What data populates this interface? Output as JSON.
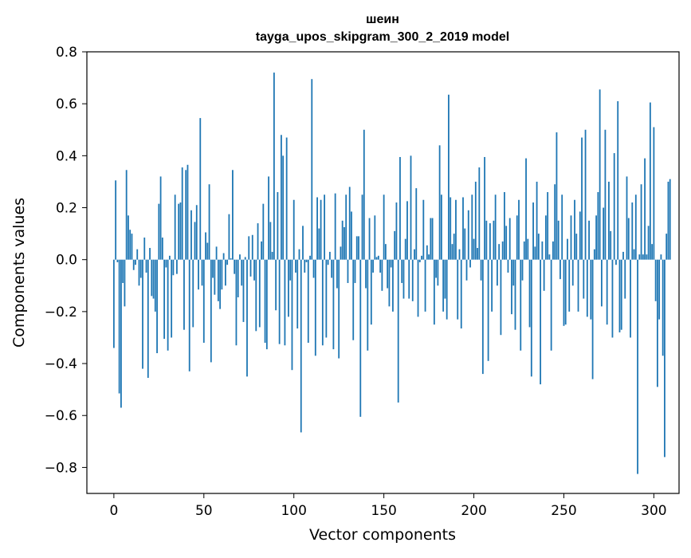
{
  "title_line1": "шеин",
  "title_line2": "tayga_upos_skipgram_300_2_2019 model",
  "chart_data": {
    "type": "bar",
    "xlabel": "Vector components",
    "ylabel": "Components values",
    "xlim": [
      -15,
      314
    ],
    "ylim": [
      -0.9,
      0.8
    ],
    "x_ticks": [
      0,
      50,
      100,
      150,
      200,
      250,
      300
    ],
    "x_tick_labels": [
      "0",
      "50",
      "100",
      "150",
      "200",
      "250",
      "300"
    ],
    "y_ticks": [
      -0.8,
      -0.6,
      -0.4,
      -0.2,
      0.0,
      0.2,
      0.4,
      0.6,
      0.8
    ],
    "y_tick_labels": [
      "−0.8",
      "−0.6",
      "−0.4",
      "−0.2",
      "0.0",
      "0.2",
      "0.4",
      "0.6",
      "0.8"
    ],
    "grid": false,
    "bar_color": "#1f77b4",
    "values": [
      -0.34,
      0.305,
      -0.01,
      -0.515,
      -0.57,
      -0.09,
      -0.18,
      0.345,
      0.17,
      0.115,
      0.1,
      -0.04,
      -0.02,
      0.04,
      -0.1,
      -0.07,
      -0.42,
      0.085,
      -0.05,
      -0.455,
      0.045,
      -0.14,
      -0.15,
      -0.2,
      -0.36,
      0.215,
      0.32,
      0.085,
      -0.305,
      -0.03,
      -0.35,
      0.015,
      -0.3,
      -0.06,
      0.25,
      -0.055,
      0.215,
      0.22,
      0.355,
      -0.27,
      0.345,
      0.365,
      -0.43,
      0.19,
      -0.26,
      0.145,
      0.21,
      -0.115,
      0.545,
      -0.1,
      -0.32,
      0.105,
      0.065,
      0.29,
      -0.395,
      -0.07,
      -0.135,
      0.05,
      -0.16,
      -0.19,
      -0.115,
      0.025,
      -0.1,
      -0.02,
      0.175,
      0.005,
      0.345,
      -0.055,
      -0.33,
      -0.145,
      0.02,
      -0.1,
      -0.24,
      0.01,
      -0.45,
      0.09,
      -0.065,
      0.095,
      -0.08,
      -0.275,
      0.14,
      -0.26,
      0.07,
      0.215,
      -0.32,
      -0.345,
      0.32,
      0.145,
      0.03,
      0.72,
      -0.195,
      0.26,
      -0.325,
      0.48,
      0.4,
      -0.33,
      0.47,
      -0.22,
      -0.08,
      -0.425,
      0.23,
      -0.05,
      -0.265,
      0.04,
      -0.665,
      0.13,
      -0.05,
      -0.01,
      -0.32,
      0.015,
      0.695,
      -0.07,
      -0.37,
      0.24,
      0.12,
      0.23,
      -0.33,
      0.25,
      -0.3,
      -0.02,
      0.03,
      -0.07,
      -0.345,
      0.255,
      -0.11,
      -0.38,
      0.05,
      0.15,
      0.125,
      0.25,
      -0.09,
      0.28,
      0.185,
      -0.31,
      -0.09,
      0.09,
      0.09,
      -0.605,
      0.25,
      0.5,
      -0.11,
      -0.35,
      0.16,
      -0.25,
      -0.05,
      0.17,
      0.01,
      0.015,
      -0.05,
      -0.12,
      0.25,
      0.06,
      -0.11,
      -0.18,
      -0.03,
      -0.2,
      0.11,
      0.22,
      -0.55,
      0.395,
      -0.09,
      -0.15,
      0.08,
      0.225,
      -0.15,
      0.4,
      -0.16,
      0.04,
      0.275,
      -0.22,
      -0.01,
      0.015,
      0.23,
      -0.2,
      0.055,
      0.02,
      0.16,
      0.16,
      -0.25,
      -0.07,
      -0.1,
      0.44,
      0.25,
      -0.2,
      -0.15,
      -0.23,
      0.635,
      0.24,
      0.06,
      0.1,
      0.23,
      -0.23,
      0.04,
      -0.265,
      0.24,
      0.12,
      -0.08,
      0.19,
      -0.03,
      0.25,
      0.08,
      0.3,
      0.045,
      0.355,
      -0.08,
      -0.44,
      0.395,
      0.15,
      -0.39,
      0.14,
      -0.2,
      0.15,
      0.25,
      -0.1,
      0.06,
      -0.29,
      0.07,
      0.26,
      0.13,
      -0.05,
      0.16,
      -0.21,
      -0.1,
      -0.27,
      0.17,
      0.23,
      -0.35,
      -0.08,
      0.07,
      0.39,
      0.08,
      -0.26,
      -0.45,
      0.22,
      0.05,
      0.3,
      0.1,
      -0.48,
      0.07,
      -0.12,
      0.17,
      0.26,
      0.02,
      -0.35,
      0.07,
      0.29,
      0.49,
      0.15,
      -0.075,
      0.25,
      -0.255,
      -0.25,
      0.08,
      -0.2,
      0.17,
      -0.1,
      0.23,
      0.1,
      -0.2,
      0.185,
      0.47,
      -0.15,
      0.5,
      -0.22,
      0.15,
      -0.23,
      -0.46,
      0.04,
      0.17,
      0.26,
      0.655,
      -0.18,
      0.2,
      0.5,
      -0.25,
      0.3,
      0.11,
      -0.3,
      0.41,
      -0.02,
      0.61,
      -0.28,
      -0.27,
      0.03,
      -0.15,
      0.32,
      0.16,
      -0.3,
      0.22,
      0.04,
      0.25,
      -0.825,
      0.02,
      0.29,
      0.02,
      0.39,
      0.02,
      0.13,
      0.605,
      0.06,
      0.51,
      -0.16,
      -0.49,
      -0.23,
      0.02,
      -0.37,
      -0.76,
      0.1,
      0.3,
      0.31
    ]
  }
}
